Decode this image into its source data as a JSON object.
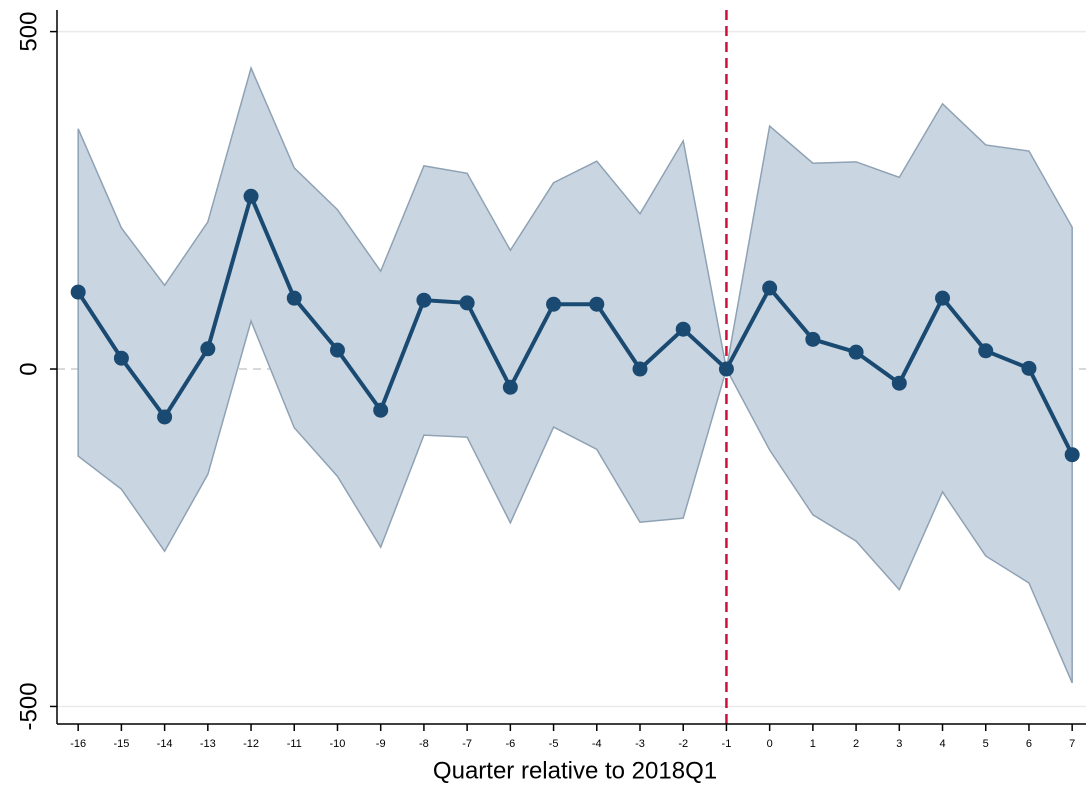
{
  "chart_data": {
    "type": "line",
    "x_label": "Quarter relative to 2018Q1",
    "x": [
      -16,
      -15,
      -14,
      -13,
      -12,
      -11,
      -10,
      -9,
      -8,
      -7,
      -6,
      -5,
      -4,
      -3,
      -2,
      -1,
      0,
      1,
      2,
      3,
      4,
      5,
      6,
      7
    ],
    "series": [
      {
        "color": "#1a4a72",
        "band_color": "#c9d6e2",
        "values": [
          114,
          16,
          -71,
          30,
          256,
          105,
          28,
          -61,
          102,
          98,
          -27,
          96,
          96,
          0,
          59,
          0,
          120,
          44,
          25,
          -21,
          105,
          27,
          1,
          -127
        ],
        "ci_upper": [
          356,
          209,
          124,
          218,
          446,
          298,
          236,
          145,
          301,
          290,
          176,
          276,
          308,
          230,
          338,
          0,
          360,
          305,
          307,
          284,
          393,
          332,
          323,
          210
        ],
        "ci_lower": [
          -129,
          -178,
          -270,
          -156,
          71,
          -87,
          -159,
          -264,
          -98,
          -101,
          -228,
          -86,
          -119,
          -227,
          -221,
          0,
          -120,
          -216,
          -255,
          -327,
          -182,
          -277,
          -317,
          -465
        ]
      }
    ],
    "reference_x": -1,
    "reference_color": "#d0103a",
    "xlim": [
      -16.49,
      7.32
    ],
    "ylim": [
      -526,
      532
    ],
    "xticks": [
      -16,
      -15,
      -14,
      -13,
      -12,
      -11,
      -10,
      -9,
      -8,
      -7,
      -6,
      -5,
      -4,
      -3,
      -2,
      -1,
      0,
      1,
      2,
      3,
      4,
      5,
      6,
      7
    ],
    "yticks": [
      -500,
      0,
      500
    ],
    "grid": true
  }
}
